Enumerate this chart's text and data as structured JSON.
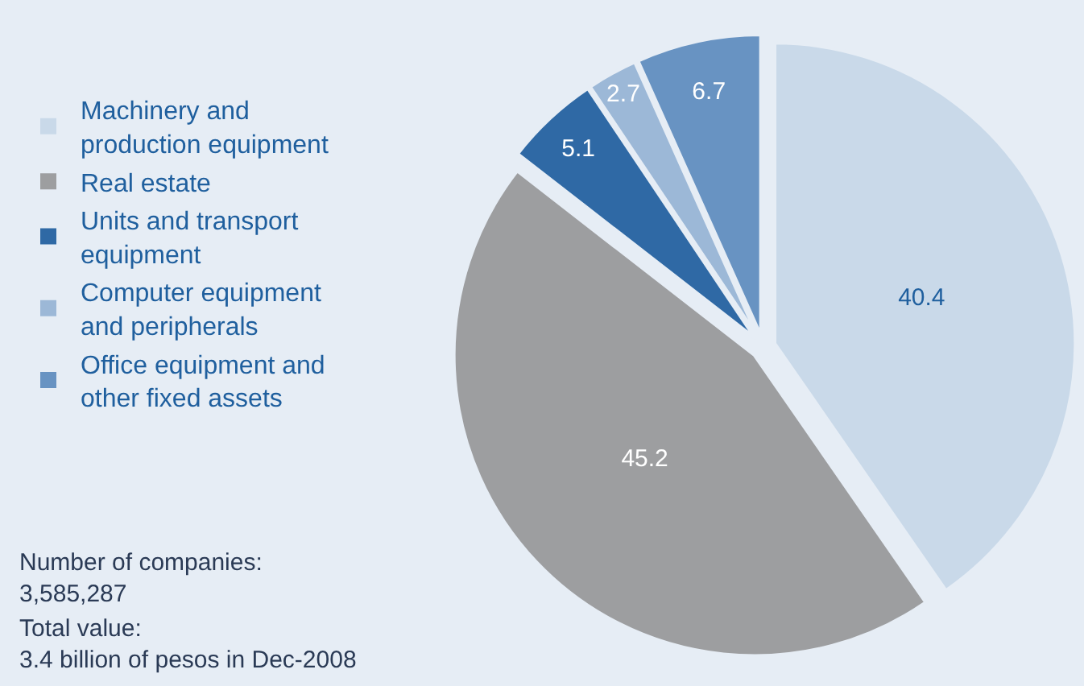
{
  "chart_data": {
    "type": "pie",
    "categories": [
      "Machinery and production equipment",
      "Real estate",
      "Units and transport equipment",
      "Computer equipment and peripherals",
      "Office equipment and other fixed assets"
    ],
    "values": [
      40.4,
      45.2,
      5.1,
      2.7,
      6.7
    ],
    "colors": [
      "#c9d9e9",
      "#9d9ea0",
      "#2f69a5",
      "#9cb8d7",
      "#6893c2"
    ],
    "data_labels": true,
    "legend": "left",
    "annotations": [
      "Number of companies: 3,585,287",
      "Total value: 3.4 billion of pesos in Dec-2008"
    ]
  }
}
